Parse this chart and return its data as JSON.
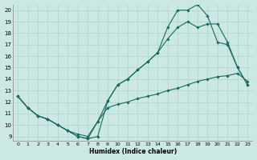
{
  "xlabel": "Humidex (Indice chaleur)",
  "bg_color": "#cce8e4",
  "grid_color": "#aad4cc",
  "line_color": "#1a6b5a",
  "xlim": [
    -0.5,
    23.5
  ],
  "ylim": [
    8.6,
    20.5
  ],
  "yticks": [
    9,
    10,
    11,
    12,
    13,
    14,
    15,
    16,
    17,
    18,
    19,
    20
  ],
  "xticks": [
    0,
    1,
    2,
    3,
    4,
    5,
    6,
    7,
    8,
    9,
    10,
    11,
    12,
    13,
    14,
    15,
    16,
    17,
    18,
    19,
    20,
    21,
    22,
    23
  ],
  "line1_x": [
    0,
    1,
    2,
    3,
    4,
    5,
    6,
    7,
    8,
    9,
    10,
    11,
    12,
    13,
    14,
    15,
    16,
    17,
    18,
    19,
    20,
    21,
    22,
    23
  ],
  "line1_y": [
    12.5,
    11.5,
    10.8,
    10.5,
    10.0,
    9.5,
    9.0,
    8.8,
    9.0,
    12.1,
    13.5,
    14.0,
    14.8,
    15.5,
    16.3,
    18.5,
    20.0,
    20.0,
    20.5,
    19.5,
    17.2,
    17.0,
    15.0,
    13.5
  ],
  "line2_x": [
    0,
    1,
    2,
    3,
    4,
    5,
    6,
    7,
    8,
    9,
    10,
    11,
    12,
    13,
    14,
    15,
    16,
    17,
    18,
    19,
    20,
    21,
    22,
    23
  ],
  "line2_y": [
    12.5,
    11.5,
    10.8,
    10.5,
    10.0,
    9.5,
    9.0,
    8.8,
    10.3,
    12.1,
    13.5,
    14.0,
    14.8,
    15.5,
    16.3,
    17.5,
    18.5,
    19.0,
    18.5,
    18.8,
    18.8,
    17.2,
    15.0,
    13.5
  ],
  "line3_x": [
    0,
    1,
    2,
    3,
    4,
    5,
    6,
    7,
    8,
    9,
    10,
    11,
    12,
    13,
    14,
    15,
    16,
    17,
    18,
    19,
    20,
    21,
    22,
    23
  ],
  "line3_y": [
    12.5,
    11.5,
    10.8,
    10.5,
    10.0,
    9.5,
    9.2,
    9.0,
    10.3,
    11.5,
    11.8,
    12.0,
    12.3,
    12.5,
    12.7,
    13.0,
    13.2,
    13.5,
    13.8,
    14.0,
    14.2,
    14.3,
    14.5,
    13.8
  ]
}
